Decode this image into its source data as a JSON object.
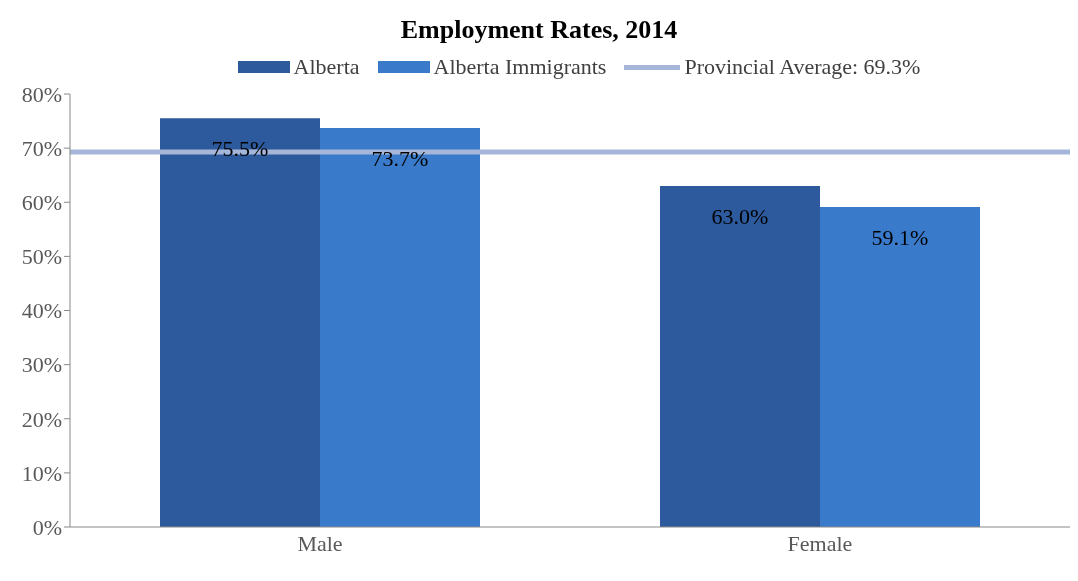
{
  "chart_data": {
    "type": "bar",
    "title": "Employment Rates, 2014",
    "categories": [
      "Male",
      "Female"
    ],
    "series": [
      {
        "name": "Alberta",
        "color": "#2c5a9c",
        "values": [
          75.5,
          63.0
        ],
        "value_labels": [
          "75.5%",
          "63.0%"
        ]
      },
      {
        "name": "Alberta Immigrants",
        "color": "#3a7acb",
        "values": [
          73.7,
          59.1
        ],
        "value_labels": [
          "73.7%",
          "59.1%"
        ]
      }
    ],
    "ylim": [
      0,
      80
    ],
    "yticks": [
      {
        "value": 0,
        "label": "0%"
      },
      {
        "value": 10,
        "label": "10%"
      },
      {
        "value": 20,
        "label": "20%"
      },
      {
        "value": 30,
        "label": "30%"
      },
      {
        "value": 40,
        "label": "40%"
      },
      {
        "value": 50,
        "label": "50%"
      },
      {
        "value": 60,
        "label": "60%"
      },
      {
        "value": 70,
        "label": "70%"
      },
      {
        "value": 80,
        "label": "80%"
      }
    ],
    "ref_lines": [
      {
        "axis": "y",
        "value": 69.3,
        "label": "Provincial Average: 69.3%",
        "color": "#a6b6d8"
      }
    ],
    "legend": "top",
    "grid": false
  }
}
